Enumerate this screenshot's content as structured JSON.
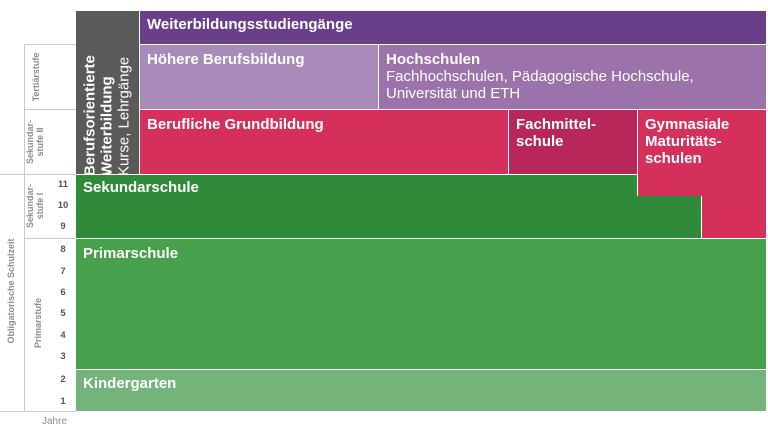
{
  "colors": {
    "purple_dark": "#6a3f8a",
    "purple_mid": "#9b72aa",
    "purple_light": "#a98bba",
    "magenta": "#d52f5c",
    "magenta_dark": "#b8275a",
    "green_dark": "#2f8a3a",
    "green_mid": "#46a04c",
    "green_light": "#74b37a",
    "gray_dark": "#5a5a5a"
  },
  "blocks": {
    "weiterbildungsstudiengaenge": "Weiterbildungsstudiengänge",
    "hoehere_berufsbildung": "Höhere Berufsbildung",
    "hochschulen_title": "Hochschulen",
    "hochschulen_sub": "Fachhochschulen, Pädagogische Hochschule, Universität und ETH",
    "berufliche_grundbildung": "Berufliche Grundbildung",
    "fachmittelschule": "Fachmittel-schule",
    "gymnasiale": "Gymnasiale Maturitäts-schulen",
    "sekundarschule": "Sekundarschule",
    "primarschule": "Primarschule",
    "kindergarten": "Kindergarten",
    "berufsorientierte_title": "Berufsorientierte Weiterbildung",
    "berufsorientierte_sub": "Kurse, Lehrgänge"
  },
  "side_labels": {
    "tertiaerstufe": "Tertiärstufe",
    "sekundarstufe_2": "Sekundar-stufe II",
    "sekundarstufe_1": "Sekundar-stufe I",
    "primarstufe": "Primarstufe",
    "obligatorische": "Obligatorische Schulzeit"
  },
  "years": [
    "11",
    "10",
    "9",
    "8",
    "7",
    "6",
    "5",
    "4",
    "3",
    "2",
    "1"
  ],
  "axis_label": "Jahre"
}
